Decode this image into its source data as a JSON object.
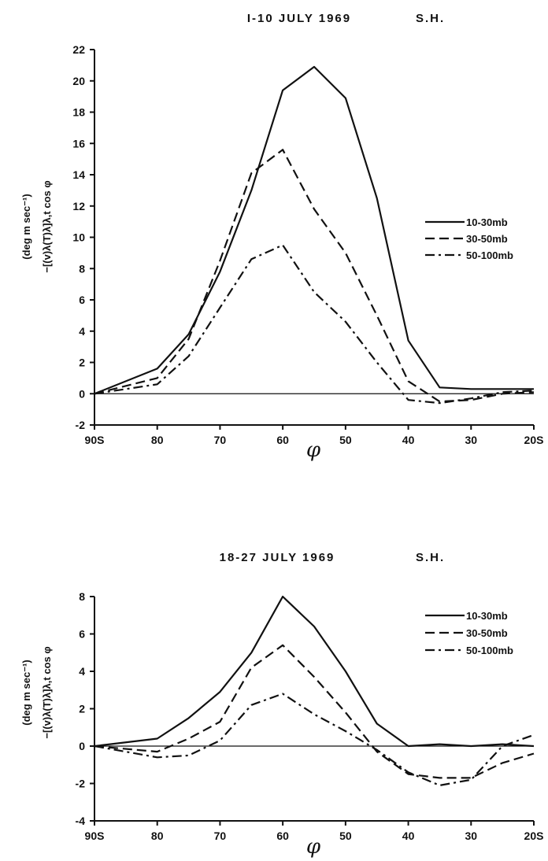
{
  "chart_data": [
    {
      "type": "line",
      "title": "I-10  JULY  1969",
      "title_right": "S.H.",
      "xlabel": "φ",
      "ylabel_line1": "(deg m sec⁻¹)",
      "ylabel_line2": "−[(v)λ(T)λ]λ,t  cos φ",
      "x_ticks": [
        "90S",
        "80",
        "70",
        "60",
        "50",
        "40",
        "30",
        "20S"
      ],
      "xlim": [
        90,
        20
      ],
      "ylim": [
        -2,
        22
      ],
      "y_ticks": [
        "-2",
        "0",
        "2",
        "4",
        "6",
        "8",
        "10",
        "12",
        "14",
        "16",
        "18",
        "20",
        "22"
      ],
      "x": [
        90,
        80,
        75,
        70,
        65,
        60,
        55,
        50,
        45,
        40,
        35,
        30,
        25,
        20
      ],
      "series": [
        {
          "name": "10-30mb",
          "style": "solid",
          "values": [
            0,
            1.6,
            3.8,
            7.8,
            13.0,
            19.4,
            20.9,
            18.9,
            12.5,
            3.4,
            0.4,
            0.3,
            0.3,
            0.3
          ]
        },
        {
          "name": "30-50mb",
          "style": "dashed",
          "values": [
            0,
            1.0,
            3.5,
            8.5,
            14.1,
            15.6,
            11.8,
            9.0,
            5.0,
            0.8,
            -0.5,
            -0.4,
            0.0,
            0.1
          ]
        },
        {
          "name": "50-100mb",
          "style": "dashdot",
          "values": [
            0,
            0.6,
            2.4,
            5.5,
            8.6,
            9.5,
            6.5,
            4.6,
            2.0,
            -0.4,
            -0.6,
            -0.3,
            0.1,
            0.2
          ]
        }
      ]
    },
    {
      "type": "line",
      "title": "18-27  JULY  1969",
      "title_right": "S.H.",
      "xlabel": "φ",
      "ylabel_line1": "(deg m sec⁻¹)",
      "ylabel_line2": "−[(v)λ(T)λ]λ,t  cos φ",
      "x_ticks": [
        "90S",
        "80",
        "70",
        "60",
        "50",
        "40",
        "30",
        "20S"
      ],
      "xlim": [
        90,
        20
      ],
      "ylim": [
        -4,
        8
      ],
      "y_ticks": [
        "-4",
        "-2",
        "0",
        "2",
        "4",
        "6",
        "8"
      ],
      "x": [
        90,
        80,
        75,
        70,
        65,
        60,
        55,
        50,
        45,
        40,
        35,
        30,
        25,
        20
      ],
      "series": [
        {
          "name": "10-30mb",
          "style": "solid",
          "values": [
            0,
            0.4,
            1.5,
            2.9,
            5.0,
            8.0,
            6.4,
            4.0,
            1.2,
            0.0,
            0.1,
            0.0,
            0.1,
            0.0
          ]
        },
        {
          "name": "30-50mb",
          "style": "dashed",
          "values": [
            0,
            -0.3,
            0.4,
            1.3,
            4.2,
            5.4,
            3.7,
            1.8,
            -0.3,
            -1.5,
            -1.7,
            -1.7,
            -0.9,
            -0.4
          ]
        },
        {
          "name": "50-100mb",
          "style": "dashdot",
          "values": [
            0,
            -0.6,
            -0.5,
            0.3,
            2.2,
            2.8,
            1.7,
            0.8,
            -0.2,
            -1.4,
            -2.1,
            -1.8,
            0.0,
            0.6
          ]
        }
      ]
    }
  ]
}
